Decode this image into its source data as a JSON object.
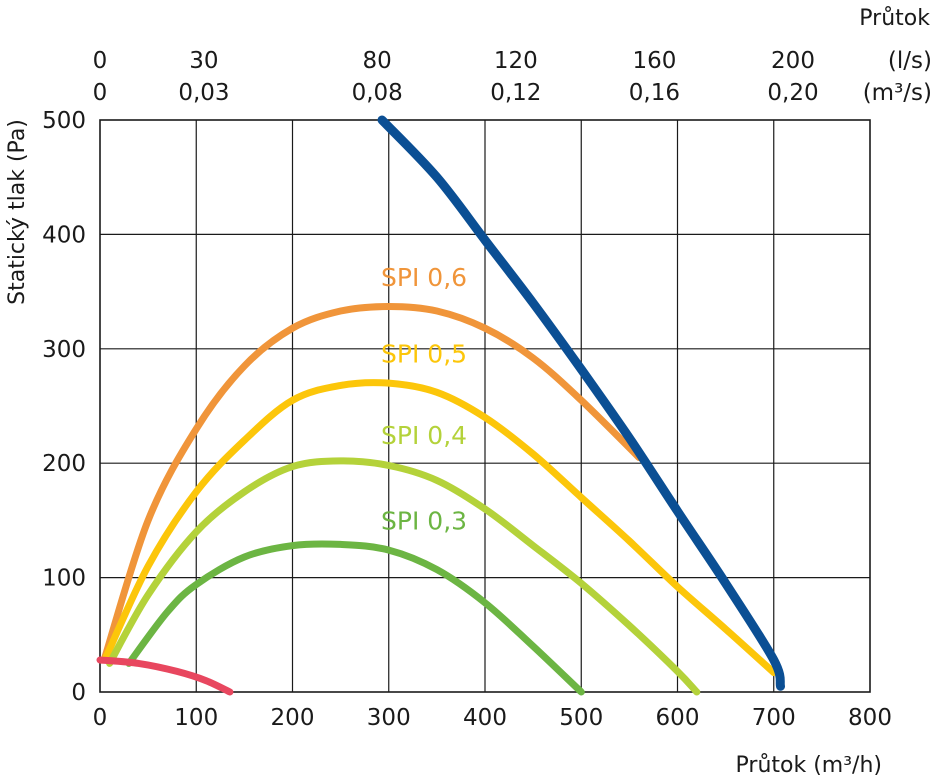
{
  "chart_data": {
    "type": "line",
    "xlabel_bottom": "Průtok (m³/h)",
    "xlabel_top": "Průtok",
    "ylabel": "Statický tlak (Pa)",
    "xlim": [
      0,
      800
    ],
    "ylim": [
      0,
      500
    ],
    "x_ticks": [
      0,
      100,
      200,
      300,
      400,
      500,
      600,
      700,
      800
    ],
    "y_ticks": [
      0,
      100,
      200,
      300,
      400,
      500
    ],
    "top_axis_ls": {
      "unit": "(l/s)",
      "ticks": [
        {
          "value_m3h": 0,
          "label": "0"
        },
        {
          "value_m3h": 108,
          "label": "30"
        },
        {
          "value_m3h": 288,
          "label": "80"
        },
        {
          "value_m3h": 432,
          "label": "120"
        },
        {
          "value_m3h": 576,
          "label": "160"
        },
        {
          "value_m3h": 720,
          "label": "200"
        }
      ]
    },
    "top_axis_m3s": {
      "unit": "(m³/s)",
      "ticks": [
        {
          "value_m3h": 0,
          "label": "0"
        },
        {
          "value_m3h": 108,
          "label": "0,03"
        },
        {
          "value_m3h": 288,
          "label": "0,08"
        },
        {
          "value_m3h": 432,
          "label": "0,12"
        },
        {
          "value_m3h": 576,
          "label": "0,16"
        },
        {
          "value_m3h": 720,
          "label": "0,20"
        }
      ]
    },
    "grid": true,
    "series": [
      {
        "name": "SPI 0,6",
        "color": "#f0953a",
        "label_at": [
          292,
          355
        ],
        "x": [
          5,
          50,
          100,
          150,
          200,
          250,
          300,
          350,
          400,
          450,
          500,
          560
        ],
        "y": [
          30,
          150,
          230,
          285,
          318,
          333,
          337,
          333,
          318,
          292,
          255,
          205
        ]
      },
      {
        "name": "SPI 0,5",
        "color": "#fcc60a",
        "label_at": [
          292,
          288
        ],
        "x": [
          5,
          50,
          100,
          150,
          200,
          250,
          300,
          350,
          400,
          450,
          500,
          550,
          600,
          650,
          700
        ],
        "y": [
          28,
          110,
          175,
          220,
          255,
          268,
          270,
          262,
          240,
          208,
          170,
          132,
          92,
          55,
          17
        ]
      },
      {
        "name": "SPI 0,4",
        "color": "#b4d23a",
        "label_at": [
          292,
          217
        ],
        "x": [
          10,
          50,
          100,
          150,
          200,
          250,
          300,
          350,
          400,
          450,
          500,
          550,
          600,
          620
        ],
        "y": [
          25,
          85,
          140,
          175,
          197,
          202,
          198,
          185,
          160,
          128,
          95,
          58,
          18,
          0
        ]
      },
      {
        "name": "SPI 0,3",
        "color": "#6cb543",
        "label_at": [
          292,
          142
        ],
        "x": [
          30,
          70,
          100,
          150,
          200,
          250,
          300,
          350,
          400,
          450,
          500
        ],
        "y": [
          25,
          70,
          94,
          118,
          128,
          129,
          124,
          107,
          78,
          40,
          0
        ]
      },
      {
        "name": "",
        "color": "#0b4f94",
        "x": [
          293,
          350,
          400,
          450,
          500,
          550,
          600,
          650,
          700,
          707
        ],
        "y": [
          500,
          450,
          395,
          340,
          282,
          222,
          158,
          95,
          28,
          5
        ]
      },
      {
        "name": "",
        "color": "#e8475f",
        "x": [
          0,
          40,
          80,
          110,
          135
        ],
        "y": [
          28,
          25,
          18,
          10,
          0
        ]
      }
    ]
  }
}
